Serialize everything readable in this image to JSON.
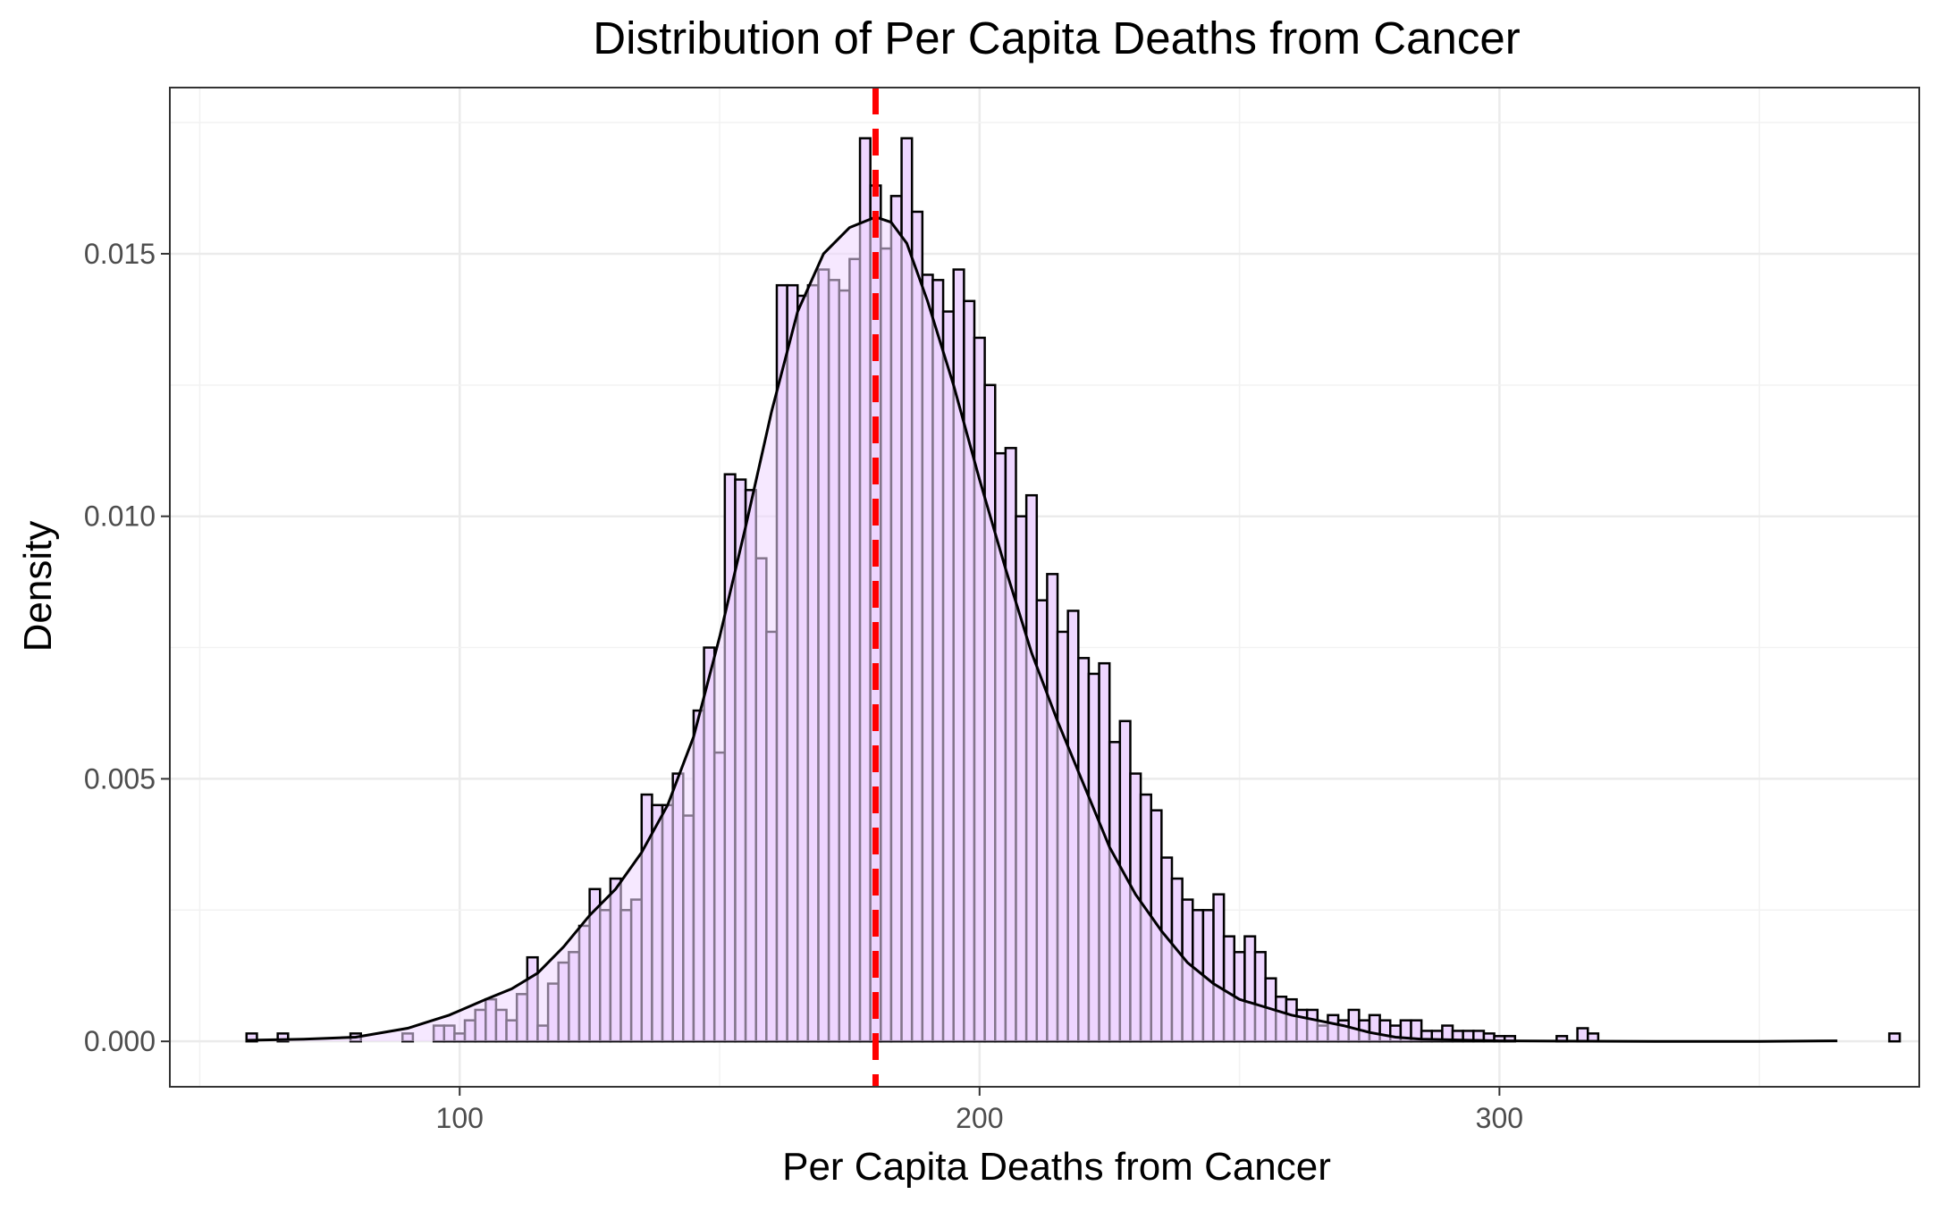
{
  "chart_data": {
    "type": "histogram",
    "title": "Distribution of Per Capita Deaths from Cancer",
    "xlabel": "Per Capita Deaths from Cancer",
    "ylabel": "Density",
    "xlim": [
      44.25,
      380.75
    ],
    "ylim": [
      -0.000865,
      0.018165
    ],
    "x_ticks": [
      100,
      200,
      300
    ],
    "x_tick_labels": [
      "100",
      "200",
      "300"
    ],
    "y_ticks": [
      0.0,
      0.005,
      0.01,
      0.015
    ],
    "y_tick_labels": [
      "0.000",
      "0.005",
      "0.010",
      "0.015"
    ],
    "grid": true,
    "bin_width": 2,
    "bins_start": 59,
    "bin_densities": [
      0.00015,
      0,
      0,
      0.00015,
      0,
      0,
      0,
      0,
      0,
      0,
      0.00015,
      0,
      0,
      0,
      0,
      0.00015,
      0,
      0,
      0.0003,
      0.0003,
      0.00015,
      0.0004,
      0.0006,
      0.0008,
      0.0006,
      0.0004,
      0.0009,
      0.0016,
      0.0003,
      0.0011,
      0.0015,
      0.0017,
      0.0022,
      0.0029,
      0.0025,
      0.0031,
      0.0025,
      0.0027,
      0.0047,
      0.0045,
      0.0045,
      0.0051,
      0.0043,
      0.0063,
      0.0075,
      0.0055,
      0.0108,
      0.0107,
      0.0105,
      0.0092,
      0.0078,
      0.0144,
      0.0144,
      0.0142,
      0.0144,
      0.0147,
      0.0145,
      0.0143,
      0.0149,
      0.0172,
      0.0163,
      0.0151,
      0.0161,
      0.0172,
      0.0158,
      0.0146,
      0.0145,
      0.0139,
      0.0147,
      0.0141,
      0.0134,
      0.0125,
      0.0112,
      0.0113,
      0.01,
      0.0104,
      0.0084,
      0.0089,
      0.0078,
      0.0082,
      0.0073,
      0.007,
      0.0072,
      0.0057,
      0.0061,
      0.0051,
      0.0047,
      0.0044,
      0.0035,
      0.0031,
      0.0027,
      0.0025,
      0.0025,
      0.0028,
      0.002,
      0.0017,
      0.002,
      0.0017,
      0.0012,
      0.00085,
      0.0008,
      0.0006,
      0.0006,
      0.0003,
      0.0005,
      0.0004,
      0.0006,
      0.0004,
      0.0005,
      0.0004,
      0.0003,
      0.0004,
      0.0004,
      0.0002,
      0.0002,
      0.0003,
      0.0002,
      0.0002,
      0.0002,
      0.00015,
      0.0001,
      0.0001,
      0,
      0,
      0,
      0,
      0.0001,
      0,
      0.00025,
      0.00015,
      0,
      0,
      0,
      0,
      0,
      0,
      0,
      0,
      0,
      0,
      0,
      0,
      0,
      0,
      0,
      0,
      0,
      0,
      0,
      0,
      0,
      0,
      0,
      0,
      0,
      0,
      0,
      0,
      0.00015
    ],
    "density_curve": [
      [
        59,
        2e-05
      ],
      [
        70,
        4e-05
      ],
      [
        80,
        8e-05
      ],
      [
        90,
        0.00025
      ],
      [
        98,
        0.0005
      ],
      [
        105,
        0.0008
      ],
      [
        110,
        0.001
      ],
      [
        115,
        0.0013
      ],
      [
        120,
        0.0018
      ],
      [
        125,
        0.0024
      ],
      [
        130,
        0.0029
      ],
      [
        135,
        0.0036
      ],
      [
        140,
        0.0045
      ],
      [
        145,
        0.0058
      ],
      [
        150,
        0.0077
      ],
      [
        155,
        0.0098
      ],
      [
        160,
        0.012
      ],
      [
        165,
        0.0139
      ],
      [
        170,
        0.015
      ],
      [
        175,
        0.0155
      ],
      [
        180,
        0.0157
      ],
      [
        183,
        0.0156
      ],
      [
        186,
        0.0152
      ],
      [
        190,
        0.0141
      ],
      [
        195,
        0.0125
      ],
      [
        200,
        0.0107
      ],
      [
        205,
        0.009
      ],
      [
        210,
        0.0074
      ],
      [
        215,
        0.0061
      ],
      [
        220,
        0.0049
      ],
      [
        225,
        0.0037
      ],
      [
        230,
        0.0028
      ],
      [
        235,
        0.0021
      ],
      [
        240,
        0.0015
      ],
      [
        245,
        0.0011
      ],
      [
        250,
        0.0008
      ],
      [
        255,
        0.00065
      ],
      [
        260,
        0.0005
      ],
      [
        265,
        0.0004
      ],
      [
        270,
        0.0003
      ],
      [
        275,
        0.00017
      ],
      [
        280,
        8e-05
      ],
      [
        285,
        4e-05
      ],
      [
        290,
        3e-05
      ],
      [
        295,
        2e-05
      ],
      [
        300,
        1e-05
      ],
      [
        310,
        5e-06
      ],
      [
        330,
        0
      ],
      [
        350,
        0
      ],
      [
        365,
        1e-05
      ]
    ],
    "mean_line_x": 180,
    "colors": {
      "bar_fill": "#eed6ff",
      "bar_stroke": "#000000",
      "curve": "#000000",
      "mean_line": "#ff0000",
      "grid_major": "#ebebeb",
      "grid_minor": "#f2f2f2",
      "panel_border": "#333333",
      "tick_label": "#4d4d4d"
    }
  }
}
